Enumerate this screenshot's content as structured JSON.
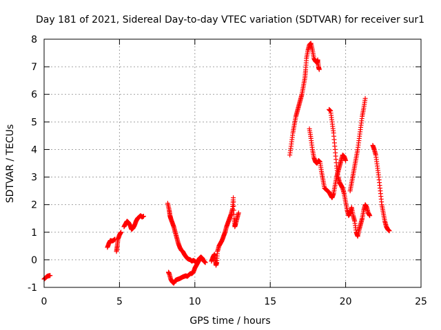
{
  "chart_data": {
    "type": "scatter",
    "title": "Day 181 of 2021, Sidereal Day-to-day VTEC variation (SDTVAR) for receiver sur1",
    "xlabel": "GPS time / hours",
    "ylabel": "SDTVAR / TECUs",
    "xlim": [
      0,
      25
    ],
    "ylim": [
      -1,
      8
    ],
    "xticks": [
      0,
      5,
      10,
      15,
      20,
      25
    ],
    "yticks": [
      -1,
      0,
      1,
      2,
      3,
      4,
      5,
      6,
      7,
      8
    ],
    "grid": true,
    "marker": "+",
    "color": "#ff0000",
    "series": [
      {
        "name": "sdtvar",
        "segments": [
          [
            [
              0.0,
              -0.7
            ],
            [
              0.1,
              -0.65
            ],
            [
              0.2,
              -0.6
            ],
            [
              0.3,
              -0.58
            ],
            [
              0.4,
              -0.57
            ]
          ],
          [
            [
              4.2,
              0.45
            ],
            [
              4.3,
              0.6
            ],
            [
              4.4,
              0.7
            ],
            [
              4.5,
              0.68
            ],
            [
              4.6,
              0.7
            ],
            [
              4.7,
              0.75
            ]
          ],
          [
            [
              4.8,
              0.3
            ],
            [
              4.85,
              0.5
            ],
            [
              4.9,
              0.75
            ],
            [
              5.0,
              0.9
            ],
            [
              5.1,
              1.0
            ]
          ],
          [
            [
              5.3,
              1.2
            ],
            [
              5.4,
              1.3
            ],
            [
              5.5,
              1.4
            ],
            [
              5.6,
              1.35
            ],
            [
              5.7,
              1.25
            ],
            [
              5.8,
              1.1
            ],
            [
              5.9,
              1.15
            ],
            [
              6.0,
              1.25
            ],
            [
              6.1,
              1.4
            ],
            [
              6.2,
              1.5
            ],
            [
              6.3,
              1.55
            ],
            [
              6.4,
              1.6
            ],
            [
              6.5,
              1.55
            ],
            [
              6.6,
              1.58
            ]
          ],
          [
            [
              8.2,
              2.05
            ],
            [
              8.3,
              1.8
            ],
            [
              8.35,
              1.6
            ],
            [
              8.4,
              1.5
            ],
            [
              8.5,
              1.35
            ],
            [
              8.6,
              1.2
            ],
            [
              8.7,
              1.0
            ],
            [
              8.8,
              0.8
            ],
            [
              8.9,
              0.6
            ],
            [
              9.0,
              0.45
            ],
            [
              9.1,
              0.35
            ],
            [
              9.2,
              0.3
            ],
            [
              9.3,
              0.2
            ],
            [
              9.4,
              0.12
            ],
            [
              9.5,
              0.05
            ],
            [
              9.6,
              0.02
            ],
            [
              9.7,
              0.0
            ],
            [
              9.8,
              -0.05
            ],
            [
              9.9,
              -0.02
            ],
            [
              10.0,
              -0.05
            ],
            [
              10.1,
              -0.1
            ],
            [
              10.2,
              -0.05
            ],
            [
              10.3,
              0.05
            ],
            [
              10.4,
              0.1
            ],
            [
              10.5,
              0.05
            ],
            [
              10.6,
              -0.05
            ],
            [
              10.7,
              -0.1
            ]
          ],
          [
            [
              8.25,
              -0.45
            ],
            [
              8.3,
              -0.5
            ],
            [
              8.4,
              -0.7
            ],
            [
              8.5,
              -0.8
            ],
            [
              8.6,
              -0.85
            ],
            [
              8.7,
              -0.75
            ],
            [
              8.8,
              -0.72
            ],
            [
              8.9,
              -0.7
            ],
            [
              9.0,
              -0.68
            ],
            [
              9.1,
              -0.65
            ],
            [
              9.2,
              -0.62
            ],
            [
              9.3,
              -0.6
            ],
            [
              9.4,
              -0.58
            ],
            [
              9.5,
              -0.6
            ],
            [
              9.6,
              -0.55
            ],
            [
              9.7,
              -0.5
            ],
            [
              9.8,
              -0.5
            ],
            [
              9.9,
              -0.45
            ],
            [
              10.0,
              -0.3
            ],
            [
              10.1,
              -0.2
            ],
            [
              10.2,
              -0.1
            ],
            [
              10.3,
              0.0
            ],
            [
              10.4,
              0.1
            ],
            [
              10.5,
              0.05
            ]
          ],
          [
            [
              11.1,
              -0.05
            ],
            [
              11.2,
              0.1
            ],
            [
              11.3,
              0.2
            ],
            [
              11.35,
              0.0
            ],
            [
              11.4,
              -0.2
            ],
            [
              11.45,
              -0.1
            ],
            [
              11.5,
              0.3
            ],
            [
              11.6,
              0.5
            ],
            [
              11.7,
              0.6
            ],
            [
              11.8,
              0.7
            ],
            [
              11.9,
              0.85
            ],
            [
              12.0,
              1.0
            ],
            [
              12.1,
              1.2
            ],
            [
              12.2,
              1.35
            ],
            [
              12.3,
              1.5
            ],
            [
              12.4,
              1.65
            ],
            [
              12.5,
              1.85
            ],
            [
              12.55,
              2.25
            ],
            [
              12.6,
              1.5
            ],
            [
              12.65,
              1.2
            ],
            [
              12.7,
              1.3
            ],
            [
              12.8,
              1.5
            ],
            [
              12.9,
              1.7
            ]
          ],
          [
            [
              16.3,
              3.8
            ],
            [
              16.4,
              4.2
            ],
            [
              16.5,
              4.6
            ],
            [
              16.6,
              4.9
            ],
            [
              16.7,
              5.2
            ],
            [
              16.8,
              5.4
            ],
            [
              16.9,
              5.6
            ],
            [
              17.0,
              5.8
            ],
            [
              17.1,
              6.0
            ],
            [
              17.2,
              6.3
            ],
            [
              17.3,
              6.6
            ],
            [
              17.35,
              6.9
            ],
            [
              17.4,
              7.3
            ],
            [
              17.5,
              7.6
            ],
            [
              17.6,
              7.8
            ],
            [
              17.7,
              7.85
            ],
            [
              17.8,
              7.6
            ],
            [
              17.9,
              7.3
            ],
            [
              18.0,
              7.2
            ],
            [
              18.1,
              7.15
            ],
            [
              18.15,
              7.25
            ],
            [
              18.2,
              7.0
            ],
            [
              18.25,
              6.9
            ]
          ],
          [
            [
              17.6,
              4.75
            ],
            [
              17.7,
              4.4
            ],
            [
              17.8,
              4.0
            ],
            [
              17.9,
              3.7
            ],
            [
              18.0,
              3.55
            ],
            [
              18.1,
              3.5
            ],
            [
              18.2,
              3.6
            ],
            [
              18.3,
              3.55
            ],
            [
              18.4,
              3.2
            ],
            [
              18.5,
              2.9
            ],
            [
              18.6,
              2.6
            ],
            [
              18.7,
              2.55
            ],
            [
              18.8,
              2.5
            ],
            [
              18.9,
              2.45
            ],
            [
              19.0,
              2.35
            ],
            [
              19.1,
              2.25
            ],
            [
              19.2,
              2.4
            ],
            [
              19.3,
              2.7
            ],
            [
              19.4,
              3.0
            ],
            [
              19.5,
              3.2
            ],
            [
              19.6,
              3.4
            ],
            [
              19.7,
              3.6
            ],
            [
              19.8,
              3.8
            ],
            [
              19.9,
              3.75
            ],
            [
              20.0,
              3.6
            ]
          ],
          [
            [
              18.9,
              5.45
            ],
            [
              19.0,
              5.4
            ],
            [
              19.1,
              5.0
            ],
            [
              19.2,
              4.6
            ],
            [
              19.3,
              4.0
            ],
            [
              19.4,
              3.4
            ],
            [
              19.5,
              3.0
            ],
            [
              19.6,
              2.8
            ],
            [
              19.7,
              2.7
            ],
            [
              19.8,
              2.6
            ],
            [
              19.9,
              2.4
            ],
            [
              20.0,
              2.1
            ],
            [
              20.1,
              1.8
            ],
            [
              20.2,
              1.6
            ],
            [
              20.3,
              1.7
            ],
            [
              20.4,
              1.9
            ],
            [
              20.5,
              1.6
            ],
            [
              20.6,
              1.4
            ],
            [
              20.7,
              1.0
            ],
            [
              20.8,
              0.85
            ],
            [
              20.9,
              1.1
            ],
            [
              21.0,
              1.3
            ],
            [
              21.1,
              1.5
            ],
            [
              21.2,
              1.8
            ],
            [
              21.3,
              2.0
            ],
            [
              21.4,
              1.9
            ],
            [
              21.5,
              1.7
            ],
            [
              21.6,
              1.6
            ]
          ],
          [
            [
              20.3,
              2.5
            ],
            [
              20.4,
              2.8
            ],
            [
              20.5,
              3.1
            ],
            [
              20.6,
              3.4
            ],
            [
              20.7,
              3.7
            ],
            [
              20.8,
              4.0
            ],
            [
              20.9,
              4.4
            ],
            [
              21.0,
              4.8
            ],
            [
              21.1,
              5.2
            ],
            [
              21.2,
              5.5
            ],
            [
              21.3,
              5.85
            ]
          ],
          [
            [
              21.8,
              4.15
            ],
            [
              21.9,
              4.0
            ],
            [
              22.0,
              3.8
            ],
            [
              22.1,
              3.4
            ],
            [
              22.2,
              3.0
            ],
            [
              22.3,
              2.5
            ],
            [
              22.4,
              2.0
            ],
            [
              22.5,
              1.7
            ],
            [
              22.6,
              1.4
            ],
            [
              22.7,
              1.2
            ],
            [
              22.8,
              1.1
            ],
            [
              22.9,
              1.05
            ]
          ]
        ]
      }
    ]
  }
}
